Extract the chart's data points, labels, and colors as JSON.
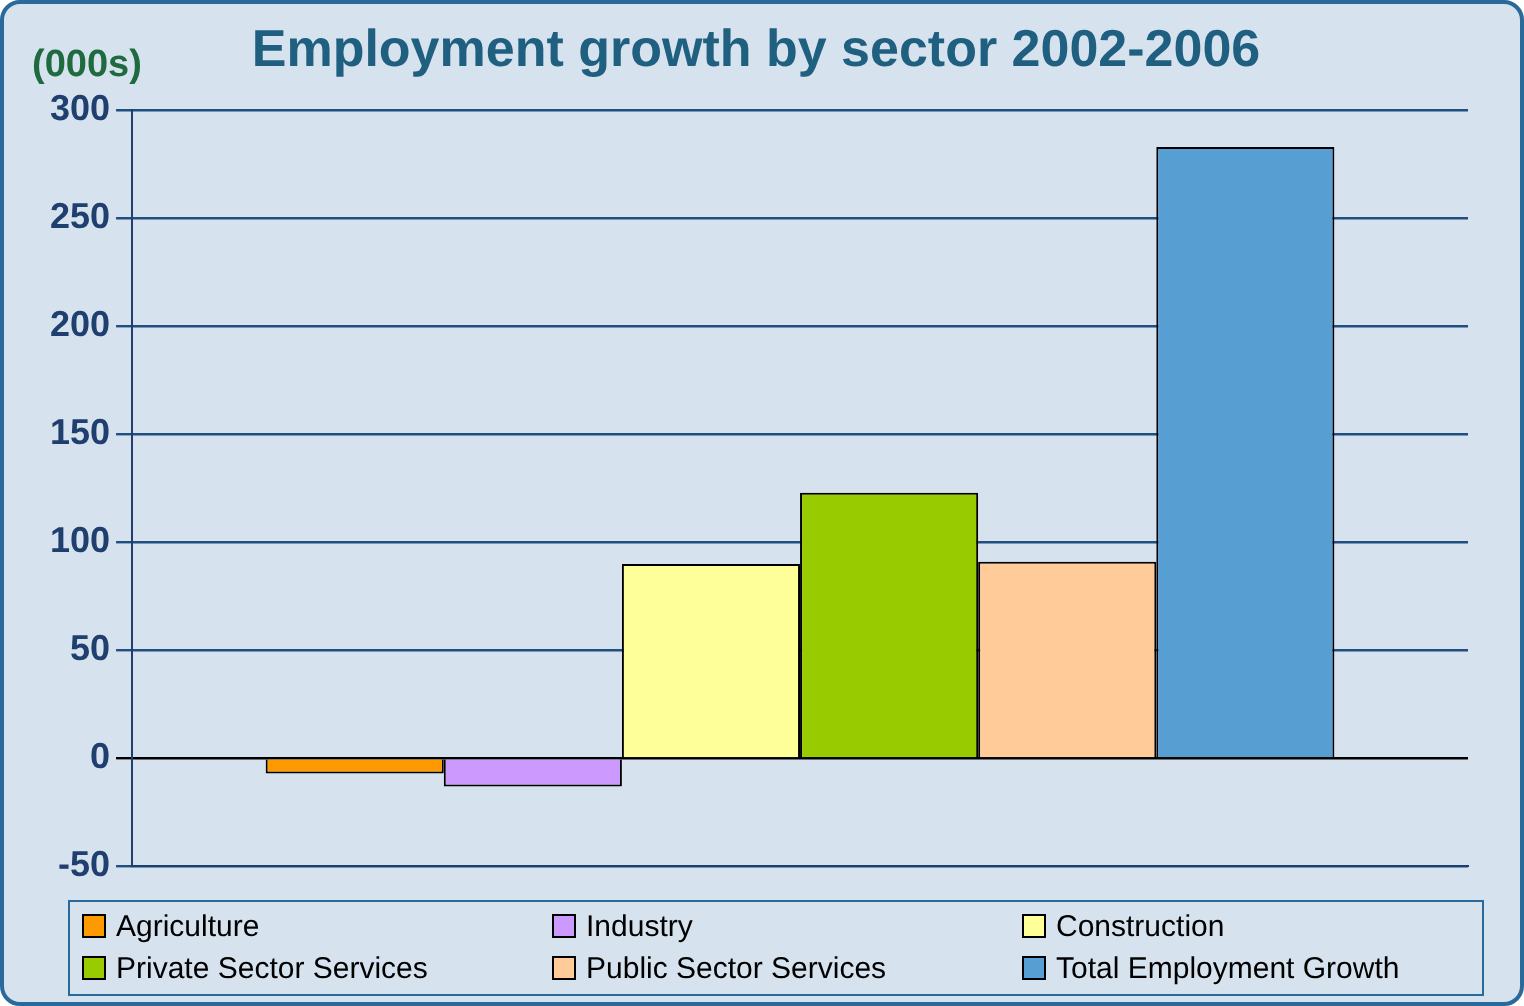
{
  "chart_data": {
    "type": "bar",
    "title": "Employment growth by sector 2002-2006",
    "ylabel": "(000s)",
    "categories": [
      null
    ],
    "series": [
      {
        "name": "Agriculture",
        "color": "#ff9900",
        "values": [
          -7
        ]
      },
      {
        "name": "Industry",
        "color": "#cc99ff",
        "values": [
          -13
        ]
      },
      {
        "name": "Construction",
        "color": "#ffff99",
        "values": [
          90
        ]
      },
      {
        "name": "Private Sector Services",
        "color": "#99cc00",
        "values": [
          123
        ]
      },
      {
        "name": "Public Sector Services",
        "color": "#ffcc99",
        "values": [
          91
        ]
      },
      {
        "name": "Total Employment Growth",
        "color": "#579fd3",
        "values": [
          283
        ]
      }
    ],
    "ylim": [
      -50,
      300
    ],
    "yticks": [
      -50,
      0,
      50,
      100,
      150,
      200,
      250,
      300
    ],
    "grid": "y",
    "legend": "bottom"
  }
}
